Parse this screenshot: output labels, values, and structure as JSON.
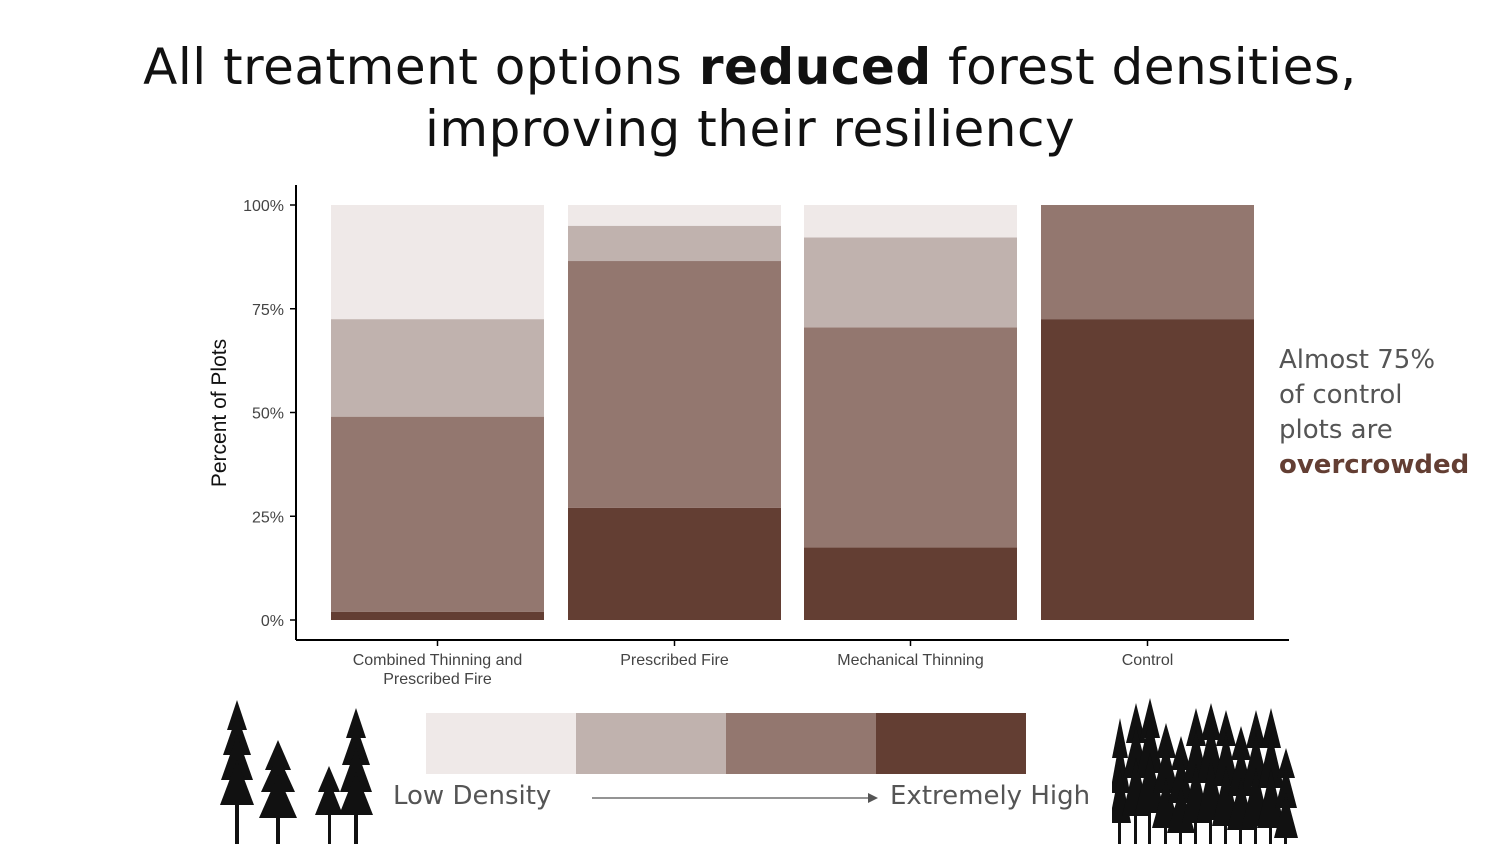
{
  "title": {
    "line1_pre": "All treatment options ",
    "line1_bold": "reduced",
    "line1_post": " forest densities,",
    "line2": "improving their resiliency"
  },
  "annotation": {
    "line1": "Almost 75%",
    "line2": "of control",
    "line3": "plots are",
    "emphasis": "overcrowded",
    "emphasis_color": "#633e33"
  },
  "legend": {
    "low_label": "Low Density",
    "high_label": "Extremely High",
    "colors": [
      "#efe9e8",
      "#c0b2ae",
      "#93776f",
      "#633e33"
    ],
    "icons": [
      "sparse-trees-icon",
      "dense-trees-icon"
    ]
  },
  "chart_data": {
    "type": "bar",
    "stacked": true,
    "ylabel": "Percent of Plots",
    "xlabel": "",
    "ylim": [
      0,
      1
    ],
    "yticks": [
      "0%",
      "25%",
      "50%",
      "75%",
      "100%"
    ],
    "categories": [
      "Combined Thinning and Prescribed Fire",
      "Prescribed Fire",
      "Mechanical Thinning",
      "Control"
    ],
    "category_labels": [
      [
        "Combined Thinning and",
        "Prescribed Fire"
      ],
      [
        "Prescribed Fire"
      ],
      [
        "Mechanical Thinning"
      ],
      [
        "Control"
      ]
    ],
    "series": [
      {
        "values": [
          0.02,
          0.27,
          0.175,
          0.725
        ],
        "color": "#633e33"
      },
      {
        "values": [
          0.47,
          0.595,
          0.53,
          0.275
        ],
        "color": "#93776f"
      },
      {
        "values": [
          0.235,
          0.085,
          0.217,
          0.0
        ],
        "color": "#c0b2ae"
      },
      {
        "values": [
          0.275,
          0.05,
          0.078,
          0.0
        ],
        "color": "#efe9e8"
      }
    ],
    "grid": false,
    "legend_position": "bottom"
  }
}
